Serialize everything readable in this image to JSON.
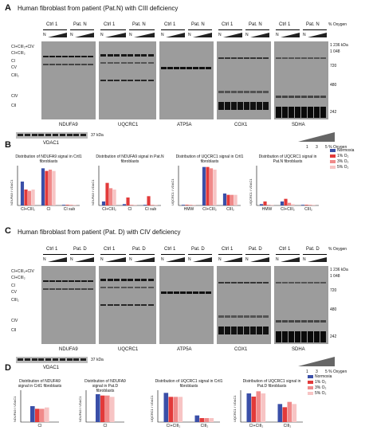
{
  "panelA": {
    "letter": "A",
    "title": "Human fibroblast from patient (Pat.N) with CIII deficiency",
    "lanes": {
      "ctrl": "Ctrl 1",
      "pat": "Pat. N",
      "n": "N"
    },
    "oxygen_label": "% Oxygen",
    "left_labels": [
      "CI+CIII₂+CIV",
      "CI+CIII₂",
      "CI",
      "CV",
      "CIII₂",
      "CIV",
      "CII"
    ],
    "mw": [
      "1 236 kDa",
      "1 048",
      "720",
      "480",
      "242"
    ],
    "blot_names": [
      "NDUFA9",
      "UQCRC1",
      "ATP5A",
      "COX1",
      "SDHA"
    ],
    "loading": "VDAC1",
    "loading_mw": "37 kDa",
    "gradient_ticks": [
      "1",
      "3",
      "5 % Oxygen"
    ]
  },
  "panelB": {
    "letter": "B",
    "legend": [
      "Normoxia",
      "1% O₂",
      "3% O₂",
      "5% O₂"
    ]
  },
  "panelC": {
    "letter": "C",
    "title": "Human fibroblast from patient (Pat. D) with CIV deficiency",
    "lanes": {
      "ctrl": "Ctrl 1",
      "pat": "Pat. D",
      "n": "N"
    },
    "oxygen_label": "% Oxygen",
    "left_labels": [
      "CI+CIII₂+CIV",
      "CI+CIII₂",
      "CI",
      "CV",
      "CIII₂",
      "CIV",
      "CII"
    ],
    "mw": [
      "1 236 kDa",
      "1 048",
      "720",
      "480",
      "242"
    ],
    "blot_names": [
      "NDUFA9",
      "UQCRC1",
      "ATP5A",
      "COX1",
      "SDHA"
    ],
    "loading": "VDAC1",
    "loading_mw": "37 kDa",
    "gradient_ticks": [
      "1",
      "3",
      "5 % Oxygen"
    ]
  },
  "panelD": {
    "letter": "D",
    "legend": [
      "Normoxia",
      "1% O₂",
      "3% O₂",
      "5% O₂"
    ]
  },
  "colors": {
    "normoxia": "#3a4fa8",
    "o1": "#e23a3a",
    "o3": "#f08a8a",
    "o5": "#f7c4c4"
  },
  "chart_data": [
    {
      "type": "bar",
      "title": "Distribution of NDUFA9 signal in Crtl1 fibroblasts",
      "ylabel": "NDUFA9 / VDAC1",
      "categories": [
        "CI+CIII₂",
        "CI",
        "CI sub"
      ],
      "ylim": [
        0,
        3
      ],
      "series": [
        {
          "name": "Normoxia",
          "values": [
            1.8,
            2.8,
            0.05
          ]
        },
        {
          "name": "1% O₂",
          "values": [
            1.2,
            2.6,
            0.05
          ]
        },
        {
          "name": "3% O₂",
          "values": [
            1.1,
            2.7,
            0.05
          ]
        },
        {
          "name": "5% O₂",
          "values": [
            1.2,
            2.6,
            0.05
          ]
        }
      ]
    },
    {
      "type": "bar",
      "title": "Distribution of NDUFA9 signal in Pat.N fibroblasts",
      "ylabel": "NDUFA9 / VDAC1",
      "categories": [
        "CI+CIII₂",
        "CI",
        "CI sub"
      ],
      "ylim": [
        0,
        3
      ],
      "series": [
        {
          "name": "Normoxia",
          "values": [
            0.3,
            0.1,
            0.05
          ]
        },
        {
          "name": "1% O₂",
          "values": [
            1.7,
            0.6,
            0.7
          ]
        },
        {
          "name": "3% O₂",
          "values": [
            1.3,
            0.05,
            0.05
          ]
        },
        {
          "name": "5% O₂",
          "values": [
            1.2,
            0.05,
            0.05
          ]
        }
      ]
    },
    {
      "type": "bar",
      "title": "Distribution of UQCRC1 signal in Crtl1 fibroblasts",
      "ylabel": "UQCRC1 / VDAC1",
      "categories": [
        "HMW",
        "CI+CIII₂",
        "CIII₂"
      ],
      "ylim": [
        0,
        3
      ],
      "series": [
        {
          "name": "Normoxia",
          "values": [
            0.05,
            2.9,
            0.9
          ]
        },
        {
          "name": "1% O₂",
          "values": [
            0.05,
            2.9,
            0.8
          ]
        },
        {
          "name": "3% O₂",
          "values": [
            0.05,
            2.8,
            0.8
          ]
        },
        {
          "name": "5% O₂",
          "values": [
            0.05,
            2.7,
            0.8
          ]
        }
      ]
    },
    {
      "type": "bar",
      "title": "Distribution of UQCRC1 signal in Pat.N fibroblasts",
      "ylabel": "UQCRC1 / VDAC1",
      "categories": [
        "HMW",
        "CI+CIII₂",
        "CIII₂"
      ],
      "ylim": [
        0,
        3
      ],
      "series": [
        {
          "name": "Normoxia",
          "values": [
            0.1,
            0.3,
            0.05
          ]
        },
        {
          "name": "1% O₂",
          "values": [
            0.3,
            0.5,
            0.05
          ]
        },
        {
          "name": "3% O₂",
          "values": [
            0.05,
            0.2,
            0.05
          ]
        },
        {
          "name": "5% O₂",
          "values": [
            0.05,
            0.1,
            0.05
          ]
        }
      ]
    },
    {
      "type": "bar",
      "title": "Distribution of NDUFA9 signal in Crtl1 fibroblasts",
      "ylabel": "NDUFA9 / VDAC1",
      "categories": [
        "CI"
      ],
      "ylim": [
        0,
        1.2
      ],
      "series": [
        {
          "name": "Normoxia",
          "values": [
            0.6
          ]
        },
        {
          "name": "1% O₂",
          "values": [
            0.5
          ]
        },
        {
          "name": "3% O₂",
          "values": [
            0.5
          ]
        },
        {
          "name": "5% O₂",
          "values": [
            0.55
          ]
        }
      ]
    },
    {
      "type": "bar",
      "title": "Distribution of NDUFA9 signal in Pat.D fibroblasts",
      "ylabel": "NDUFA9 / VDAC1",
      "categories": [
        "CI"
      ],
      "ylim": [
        0,
        1.2
      ],
      "series": [
        {
          "name": "Normoxia",
          "values": [
            1.05
          ]
        },
        {
          "name": "1% O₂",
          "values": [
            1.0
          ]
        },
        {
          "name": "3% O₂",
          "values": [
            1.0
          ]
        },
        {
          "name": "5% O₂",
          "values": [
            0.95
          ]
        }
      ]
    },
    {
      "type": "bar",
      "title": "Distribution of UQCRC1 signal in Crtl1 fibroblasts",
      "ylabel": "UQCRC1 / VDAC1",
      "categories": [
        "CI+CIII₂",
        "CIII₂"
      ],
      "ylim": [
        0,
        1.2
      ],
      "series": [
        {
          "name": "Normoxia",
          "values": [
            1.1,
            0.25
          ]
        },
        {
          "name": "1% O₂",
          "values": [
            0.95,
            0.15
          ]
        },
        {
          "name": "3% O₂",
          "values": [
            0.95,
            0.15
          ]
        },
        {
          "name": "5% O₂",
          "values": [
            0.95,
            0.15
          ]
        }
      ]
    },
    {
      "type": "bar",
      "title": "Distribution of UQCRC1 signal in Pat.D fibroblasts",
      "ylabel": "UQCRC1 / VDAC1",
      "categories": [
        "CI+CIII₂",
        "CIII₂"
      ],
      "ylim": [
        0,
        1.5
      ],
      "series": [
        {
          "name": "Normoxia",
          "values": [
            1.35,
            0.85
          ]
        },
        {
          "name": "1% O₂",
          "values": [
            1.2,
            0.7
          ]
        },
        {
          "name": "3% O₂",
          "values": [
            1.45,
            0.95
          ]
        },
        {
          "name": "5% O₂",
          "values": [
            1.35,
            0.85
          ]
        }
      ]
    }
  ]
}
